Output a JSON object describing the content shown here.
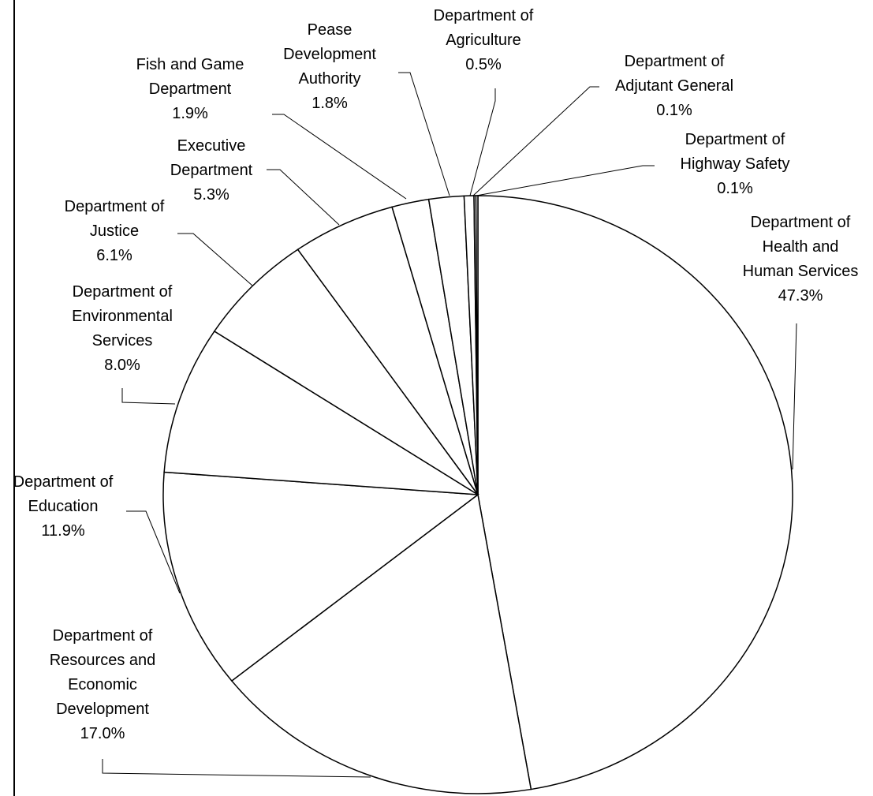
{
  "chart_data": {
    "type": "pie",
    "categories": [
      "Department of Health and Human Services",
      "Department of Resources and Economic Development",
      "Department of Education",
      "Department of Environmental Services",
      "Department of Justice",
      "Executive Department",
      "Fish and Game Department",
      "Pease Development Authority",
      "Department of Agriculture",
      "Department of Adjutant General",
      "Department of Highway Safety"
    ],
    "values": [
      47.3,
      17.0,
      11.9,
      8.0,
      6.1,
      5.3,
      1.9,
      1.8,
      0.5,
      0.1,
      0.1
    ],
    "value_labels": [
      "47.3%",
      "17.0%",
      "11.9%",
      "8.0%",
      "6.1%",
      "5.3%",
      "1.9%",
      "1.8%",
      "0.5%",
      "0.1%",
      "0.1%"
    ],
    "color": "#ffffff"
  }
}
